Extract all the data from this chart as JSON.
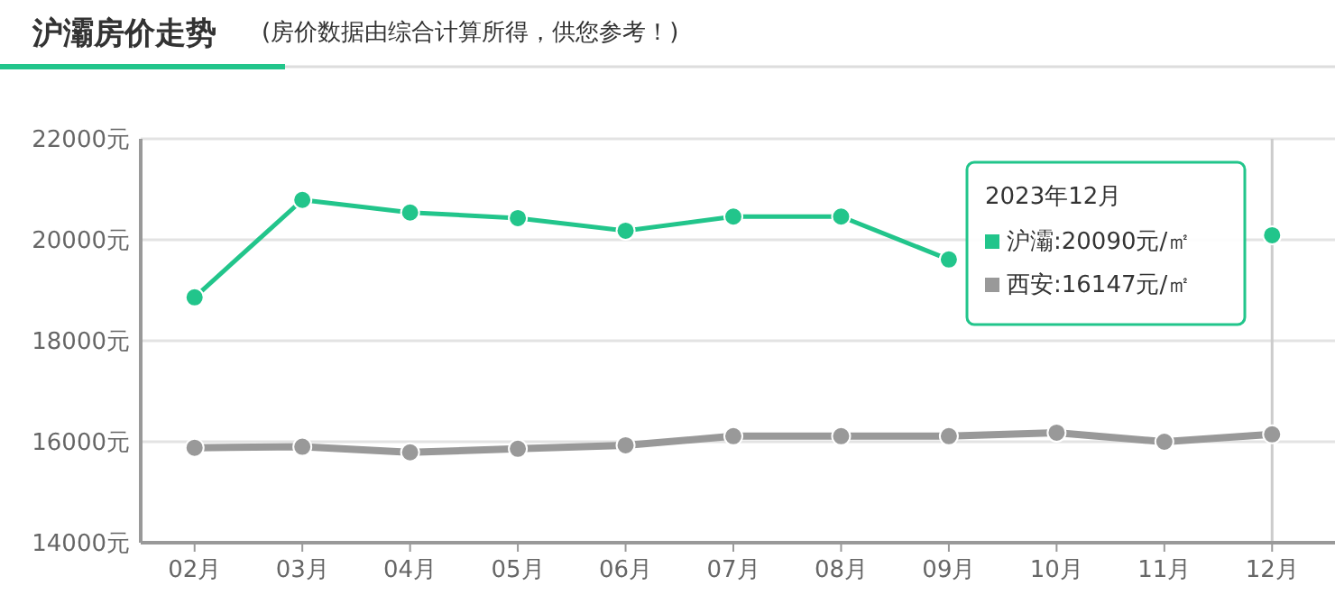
{
  "chart_data": {
    "type": "line",
    "title": "沪灞房价走势",
    "subtitle": "(房价数据由综合计算所得，供您参考！)",
    "legend_title": "2023年12月",
    "legend": "top right",
    "grid": "y",
    "marker": "circle",
    "line_style": "solid",
    "categories": [
      "02月",
      "03月",
      "04月",
      "05月",
      "06月",
      "07月",
      "08月",
      "09月",
      "10月",
      "11月",
      "12月"
    ],
    "ylim": [
      14000,
      22000
    ],
    "yticks": [
      {
        "value": 14000,
        "label": "14000元"
      },
      {
        "value": 16000,
        "label": "16000元"
      },
      {
        "value": 18000,
        "label": "18000元"
      },
      {
        "value": 20000,
        "label": "20000元"
      },
      {
        "value": 22000,
        "label": "22000元"
      }
    ],
    "series": [
      {
        "name": "沪灞",
        "color": "#22c58b",
        "values": [
          18860,
          20790,
          20540,
          20430,
          20180,
          20460,
          20460,
          19610,
          null,
          null,
          20090
        ]
      },
      {
        "name": "西安",
        "color": "#999999",
        "values": [
          15880,
          15900,
          15790,
          15860,
          15930,
          16110,
          16110,
          16110,
          16180,
          16000,
          16147
        ]
      }
    ],
    "ref_lines": [
      {
        "axis": "x",
        "value": "12月",
        "color": "#cccccc"
      }
    ],
    "annotations": [
      ":20090元/㎡",
      ":16147元/㎡"
    ]
  }
}
